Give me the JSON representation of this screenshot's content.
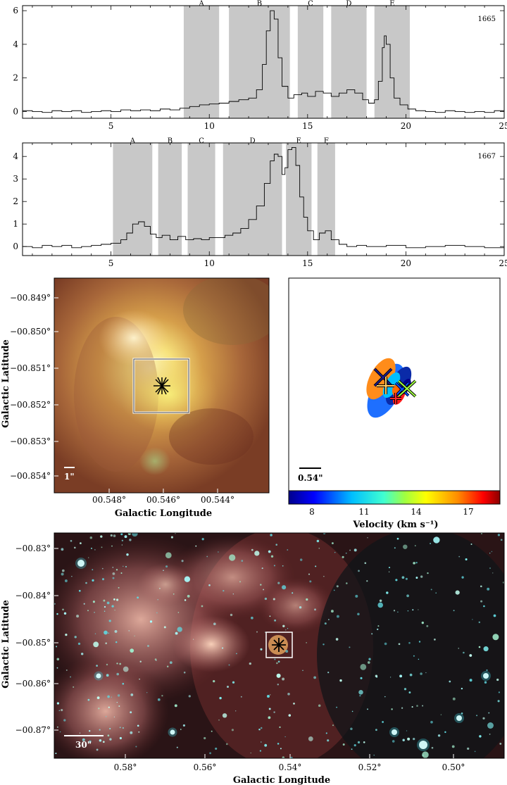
{
  "chart_data": [
    {
      "type": "line",
      "id": "spectrum-1665",
      "annotation": "1665",
      "xlim": [
        0.5,
        25
      ],
      "ylim": [
        -0.4,
        6.3
      ],
      "x_ticks": [
        5,
        10,
        15,
        20,
        25
      ],
      "y_ticks": [
        0,
        2,
        4,
        6
      ],
      "bands": [
        {
          "label": "A",
          "from": 8.7,
          "to": 10.5
        },
        {
          "label": "B",
          "from": 11.0,
          "to": 14.1
        },
        {
          "label": "C",
          "from": 14.5,
          "to": 15.8
        },
        {
          "label": "D",
          "from": 16.2,
          "to": 18.0
        },
        {
          "label": "E",
          "from": 18.4,
          "to": 20.2
        }
      ],
      "x": [
        0.5,
        1,
        1.5,
        2,
        2.5,
        3,
        3.5,
        4,
        4.5,
        5,
        5.5,
        6,
        6.5,
        7,
        7.5,
        8,
        8.5,
        9,
        9.5,
        10,
        10.5,
        11,
        11.5,
        12,
        12.4,
        12.7,
        12.9,
        13.1,
        13.3,
        13.5,
        13.7,
        14.0,
        14.3,
        14.7,
        15.0,
        15.4,
        15.8,
        16.2,
        16.6,
        17.0,
        17.4,
        17.8,
        18.1,
        18.4,
        18.6,
        18.8,
        18.9,
        19.0,
        19.2,
        19.4,
        19.7,
        20.1,
        20.5,
        21,
        21.5,
        22,
        22.5,
        23,
        23.5,
        24,
        24.5,
        25
      ],
      "y": [
        0.05,
        0.0,
        -0.05,
        0.05,
        0.0,
        0.05,
        -0.05,
        0.0,
        0.05,
        0.0,
        0.1,
        0.05,
        0.1,
        0.05,
        0.15,
        0.1,
        0.2,
        0.3,
        0.4,
        0.45,
        0.5,
        0.6,
        0.7,
        0.8,
        1.3,
        2.8,
        4.8,
        6.0,
        5.5,
        3.2,
        1.5,
        0.8,
        1.0,
        1.1,
        0.9,
        1.2,
        1.1,
        0.9,
        1.1,
        1.3,
        1.1,
        0.7,
        0.5,
        0.7,
        1.8,
        3.8,
        4.5,
        4.0,
        2.0,
        0.8,
        0.4,
        0.15,
        0.05,
        0.0,
        -0.05,
        0.05,
        0.0,
        -0.05,
        0.0,
        -0.05,
        0.05,
        0.0
      ]
    },
    {
      "type": "line",
      "id": "spectrum-1667",
      "annotation": "1667",
      "xlim": [
        0.5,
        25
      ],
      "ylim": [
        -0.4,
        4.6
      ],
      "x_ticks": [
        5,
        10,
        15,
        20,
        25
      ],
      "y_ticks": [
        0,
        1,
        2,
        3,
        4
      ],
      "bands": [
        {
          "label": "A",
          "from": 5.1,
          "to": 7.1
        },
        {
          "label": "B",
          "from": 7.4,
          "to": 8.6
        },
        {
          "label": "C",
          "from": 8.9,
          "to": 10.3
        },
        {
          "label": "D",
          "from": 10.7,
          "to": 13.7
        },
        {
          "label": "E",
          "from": 13.9,
          "to": 15.2
        },
        {
          "label": "F",
          "from": 15.5,
          "to": 16.4
        }
      ],
      "x": [
        0.5,
        1,
        1.5,
        2,
        2.5,
        3,
        3.5,
        4,
        4.5,
        5,
        5.5,
        5.8,
        6.1,
        6.4,
        6.7,
        7.0,
        7.3,
        7.6,
        8.0,
        8.4,
        8.8,
        9.2,
        9.6,
        10.0,
        10.4,
        10.8,
        11.2,
        11.6,
        12.0,
        12.4,
        12.8,
        13.1,
        13.3,
        13.5,
        13.7,
        13.85,
        14.0,
        14.2,
        14.4,
        14.6,
        14.8,
        15.0,
        15.3,
        15.6,
        15.9,
        16.2,
        16.6,
        17,
        17.5,
        18,
        19,
        20,
        21,
        22,
        23,
        24,
        25
      ],
      "y": [
        0.0,
        -0.05,
        0.05,
        0.0,
        0.05,
        -0.05,
        0.0,
        0.05,
        0.1,
        0.15,
        0.3,
        0.6,
        1.0,
        1.1,
        0.9,
        0.55,
        0.4,
        0.5,
        0.3,
        0.45,
        0.3,
        0.35,
        0.3,
        0.4,
        0.4,
        0.5,
        0.6,
        0.8,
        1.2,
        1.8,
        2.8,
        3.8,
        4.1,
        4.0,
        3.2,
        3.5,
        4.3,
        4.4,
        3.6,
        2.2,
        1.3,
        0.7,
        0.3,
        0.6,
        0.7,
        0.3,
        0.1,
        0.0,
        0.05,
        0.0,
        0.05,
        -0.05,
        0.0,
        0.05,
        0.0,
        -0.05,
        0.05
      ]
    },
    {
      "type": "image",
      "id": "zoom-image",
      "xlabel": "Galactic Longitude",
      "ylabel": "Galactic Latitude",
      "x_ticks": [
        "00.548°",
        "00.546°",
        "00.544°"
      ],
      "y_ticks": [
        "−00.849°",
        "−00.850°",
        "−00.851°",
        "−00.852°",
        "−00.853°",
        "−00.854°"
      ],
      "scale_bar": "1\""
    },
    {
      "type": "scatter",
      "id": "maser-positions",
      "scale_bar": "0.54\"",
      "colorbar_label": "Velocity (km s⁻¹)",
      "colorbar_ticks": [
        "8",
        "11",
        "14",
        "17"
      ],
      "colors": [
        "#00008b",
        "#0000ff",
        "#00bfff",
        "#7fff00",
        "#ffff00",
        "#ff8c00",
        "#ff0000",
        "#8b0000"
      ]
    },
    {
      "type": "image",
      "id": "wide-image",
      "xlabel": "Galactic Longitude",
      "ylabel": "Galactic Latitude",
      "x_ticks": [
        "0.58°",
        "0.56°",
        "0.54°",
        "0.52°",
        "0.50°"
      ],
      "y_ticks": [
        "−00.83°",
        "−00.84°",
        "−00.85°",
        "−00.86°",
        "−00.87°"
      ],
      "scale_bar": "30\""
    }
  ]
}
